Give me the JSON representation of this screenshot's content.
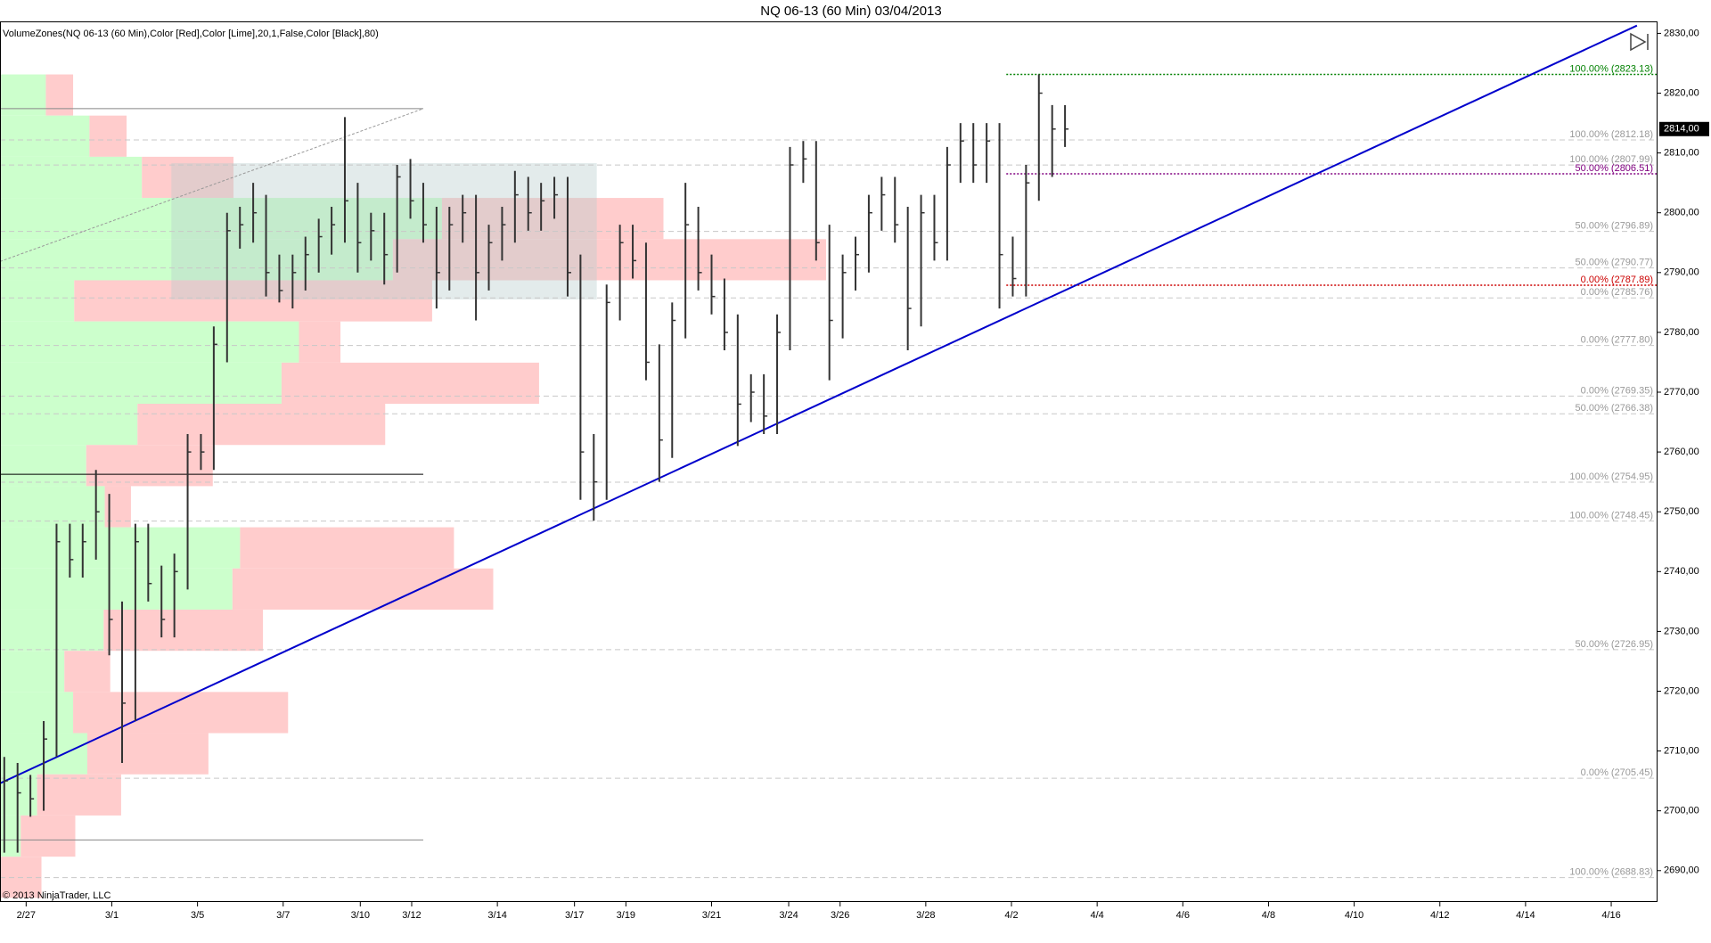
{
  "chart_data": {
    "type": "ohlc",
    "title": "NQ 06-13 (60 Min)  03/04/2013",
    "indicator_label": "VolumeZones(NQ 06-13 (60 Min),Color [Red],Color [Lime],20,1,False,Color [Black],80)",
    "copyright": "© 2013 NinjaTrader, LLC",
    "xlim": [
      -0.61,
      38.06
    ],
    "ylim": [
      2684.9,
      2832.0
    ],
    "xticks": [
      {
        "value": 0,
        "label": "2/27"
      },
      {
        "value": 2,
        "label": "3/1"
      },
      {
        "value": 4,
        "label": "3/5"
      },
      {
        "value": 6,
        "label": "3/7"
      },
      {
        "value": 7.8,
        "label": "3/10"
      },
      {
        "value": 9,
        "label": "3/12"
      },
      {
        "value": 11,
        "label": "3/14"
      },
      {
        "value": 12.8,
        "label": "3/17"
      },
      {
        "value": 14,
        "label": "3/19"
      },
      {
        "value": 16,
        "label": "3/21"
      },
      {
        "value": 17.8,
        "label": "3/24"
      },
      {
        "value": 19,
        "label": "3/26"
      },
      {
        "value": 21,
        "label": "3/28"
      },
      {
        "value": 23,
        "label": "4/2"
      },
      {
        "value": 25,
        "label": "4/4"
      },
      {
        "value": 27,
        "label": "4/6"
      },
      {
        "value": 29,
        "label": "4/8"
      },
      {
        "value": 31,
        "label": "4/10"
      },
      {
        "value": 33,
        "label": "4/12"
      },
      {
        "value": 35,
        "label": "4/14"
      },
      {
        "value": 37,
        "label": "4/16"
      }
    ],
    "yticks": [
      {
        "value": 2690,
        "label": "2690,00"
      },
      {
        "value": 2700,
        "label": "2700,00"
      },
      {
        "value": 2710,
        "label": "2710,00"
      },
      {
        "value": 2720,
        "label": "2720,00"
      },
      {
        "value": 2730,
        "label": "2730,00"
      },
      {
        "value": 2740,
        "label": "2740,00"
      },
      {
        "value": 2750,
        "label": "2750,00"
      },
      {
        "value": 2760,
        "label": "2760,00"
      },
      {
        "value": 2770,
        "label": "2770,00"
      },
      {
        "value": 2780,
        "label": "2780,00"
      },
      {
        "value": 2790,
        "label": "2790,00"
      },
      {
        "value": 2800,
        "label": "2800,00"
      },
      {
        "value": 2810,
        "label": "2810,00"
      },
      {
        "value": 2820,
        "label": "2820,00"
      },
      {
        "value": 2830,
        "label": "2830,00"
      }
    ],
    "bar_color": "#333333",
    "bars": {
      "x": [
        -0.51,
        -0.2,
        0.1,
        0.41,
        0.71,
        1.02,
        1.32,
        1.63,
        1.94,
        2.24,
        2.55,
        2.85,
        3.16,
        3.46,
        3.77,
        4.08,
        4.38,
        4.69,
        4.99,
        5.3,
        5.6,
        5.91,
        6.22,
        6.52,
        6.83,
        7.13,
        7.44,
        7.74,
        8.05,
        8.36,
        8.66,
        8.97,
        9.27,
        9.58,
        9.88,
        10.19,
        10.5,
        10.8,
        11.11,
        11.41,
        11.72,
        12.02,
        12.33,
        12.64,
        12.94,
        13.25,
        13.55,
        13.86,
        14.16,
        14.47,
        14.78,
        15.08,
        15.39,
        15.69,
        16.0,
        16.3,
        16.61,
        16.92,
        17.22,
        17.53,
        17.83,
        18.14,
        18.44,
        18.75,
        19.06,
        19.36,
        19.67,
        19.97,
        20.28,
        20.58,
        20.89,
        21.2,
        21.5,
        21.81,
        22.11,
        22.42,
        22.72,
        23.03,
        23.34,
        23.64,
        23.95,
        24.25
      ],
      "high": [
        2709,
        2708,
        2706,
        2715,
        2748,
        2748,
        2748,
        2757,
        2753,
        2735,
        2748,
        2748,
        2741,
        2743,
        2763,
        2763,
        2781,
        2800,
        2801,
        2805,
        2803,
        2793,
        2793,
        2796,
        2799,
        2801,
        2816,
        2805,
        2800,
        2800,
        2808,
        2809,
        2805,
        2801,
        2801,
        2803,
        2803,
        2798,
        2801,
        2807,
        2806,
        2805,
        2806,
        2806,
        2793,
        2763,
        2788,
        2798,
        2798,
        2795,
        2778,
        2785,
        2805,
        2801,
        2793,
        2789,
        2783,
        2773,
        2773,
        2783,
        2811,
        2812,
        2812,
        2798,
        2793,
        2796,
        2803,
        2806,
        2806,
        2801,
        2803,
        2803,
        2811,
        2815,
        2815,
        2815,
        2815,
        2796,
        2808,
        2823.13,
        2818,
        2818
      ],
      "low": [
        2693,
        2693,
        2699,
        2700,
        2709,
        2739,
        2739,
        2742,
        2726,
        2708,
        2715,
        2735,
        2729,
        2729,
        2737,
        2757,
        2757,
        2775,
        2794,
        2795,
        2786,
        2785,
        2784,
        2787,
        2790,
        2793,
        2795,
        2790,
        2792,
        2788,
        2790,
        2799,
        2795,
        2784,
        2787,
        2795,
        2782,
        2787,
        2792,
        2795,
        2797,
        2797,
        2799,
        2786,
        2752,
        2748.5,
        2752,
        2782,
        2789,
        2772,
        2755,
        2759,
        2779,
        2787,
        2783,
        2777,
        2761,
        2765,
        2763,
        2763,
        2777,
        2805,
        2792,
        2772,
        2779,
        2787,
        2790,
        2797,
        2795,
        2777,
        2781,
        2792,
        2792,
        2805,
        2805,
        2805,
        2784,
        2786,
        2786,
        2802,
        2806,
        2811
      ],
      "close": [
        2705,
        2703,
        2702,
        2712,
        2745,
        2742,
        2745,
        2750,
        2732,
        2718,
        2745,
        2738,
        2732,
        2740,
        2760,
        2760,
        2778,
        2797,
        2798,
        2800,
        2790,
        2787,
        2790,
        2793,
        2796,
        2798,
        2802,
        2795,
        2797,
        2793,
        2806,
        2802,
        2798,
        2790,
        2798,
        2800,
        2790,
        2795,
        2798,
        2803,
        2800,
        2802,
        2803,
        2790,
        2760,
        2755,
        2785,
        2795,
        2792,
        2775,
        2762,
        2782,
        2798,
        2790,
        2786,
        2780,
        2768,
        2770,
        2766,
        2780,
        2808,
        2809,
        2795,
        2782,
        2790,
        2793,
        2800,
        2803,
        2798,
        2784,
        2800,
        2795,
        2808,
        2812,
        2808,
        2812,
        2793,
        2789,
        2805,
        2820,
        2814,
        2814
      ]
    },
    "last_price": 2814,
    "last_price_label": "2814,00",
    "volume_zones": {
      "edges": [
        2823.13,
        2816.25,
        2809.36,
        2802.48,
        2795.59,
        2788.71,
        2781.83,
        2774.94,
        2768.06,
        2761.17,
        2754.29,
        2747.41,
        2740.52,
        2733.64,
        2726.75,
        2719.87,
        2712.99,
        2706.1,
        2699.22,
        2692.33,
        2685.45
      ],
      "green": [
        42,
        82,
        130,
        405,
        360,
        68,
        274,
        258,
        126,
        79,
        96,
        220,
        213,
        95,
        59,
        67,
        80,
        34,
        19,
        0
      ],
      "red": [
        25,
        34,
        84,
        203,
        397,
        328,
        38,
        236,
        227,
        116,
        24,
        196,
        239,
        146,
        42,
        197,
        111,
        77,
        50,
        38
      ],
      "green_color": "#ccffcc",
      "red_color": "#ffcccc"
    },
    "highlight_box": {
      "x": [
        3.39,
        13.32
      ],
      "y": [
        2785.5,
        2808.3
      ],
      "color": "#b8cccc"
    },
    "levels": [
      {
        "value": 2823.13,
        "label": "100.00% (2823.13)",
        "color": "#008000",
        "from": 22.88
      },
      {
        "value": 2812.18,
        "label": "100.00% (2812.18)"
      },
      {
        "value": 2807.99,
        "label": "100.00% (2807.99)"
      },
      {
        "value": 2806.51,
        "label": "50.00% (2806.51)",
        "color": "#800080",
        "from": 22.88
      },
      {
        "value": 2796.89,
        "label": "50.00% (2796.89)"
      },
      {
        "value": 2790.77,
        "label": "50.00% (2790.77)"
      },
      {
        "value": 2787.89,
        "label": "0.00% (2787.89)",
        "color": "#cc0000",
        "from": 22.88
      },
      {
        "value": 2785.76,
        "label": "0.00% (2785.76)"
      },
      {
        "value": 2777.8,
        "label": "0.00% (2777.80)"
      },
      {
        "value": 2769.35,
        "label": "0.00% (2769.35)"
      },
      {
        "value": 2766.38,
        "label": "50.00% (2766.38)"
      },
      {
        "value": 2754.95,
        "label": "100.00% (2754.95)"
      },
      {
        "value": 2748.45,
        "label": "100.00% (2748.45)"
      },
      {
        "value": 2726.95,
        "label": "50.00% (2726.95)"
      },
      {
        "value": 2705.45,
        "label": "0.00% (2705.45)"
      },
      {
        "value": 2688.83,
        "label": "100.00% (2688.83)"
      }
    ],
    "lines": [
      {
        "x": [
          -0.61,
          9.27
        ],
        "y": [
          2817.41,
          2817.41
        ],
        "color": "#888888"
      },
      {
        "x": [
          -0.61,
          9.27
        ],
        "y": [
          2756.27,
          2756.27
        ],
        "color": "#000000"
      },
      {
        "x": [
          -0.61,
          9.27
        ],
        "y": [
          2695.12,
          2695.12
        ],
        "color": "#888888"
      },
      {
        "x": [
          -0.61,
          9.27
        ],
        "y": [
          2791.85,
          2817.41
        ],
        "color": "#999999"
      },
      {
        "x": [
          -0.61,
          37.6
        ],
        "y": [
          2704.6,
          2831.3
        ],
        "color": "#0000cc"
      }
    ]
  }
}
